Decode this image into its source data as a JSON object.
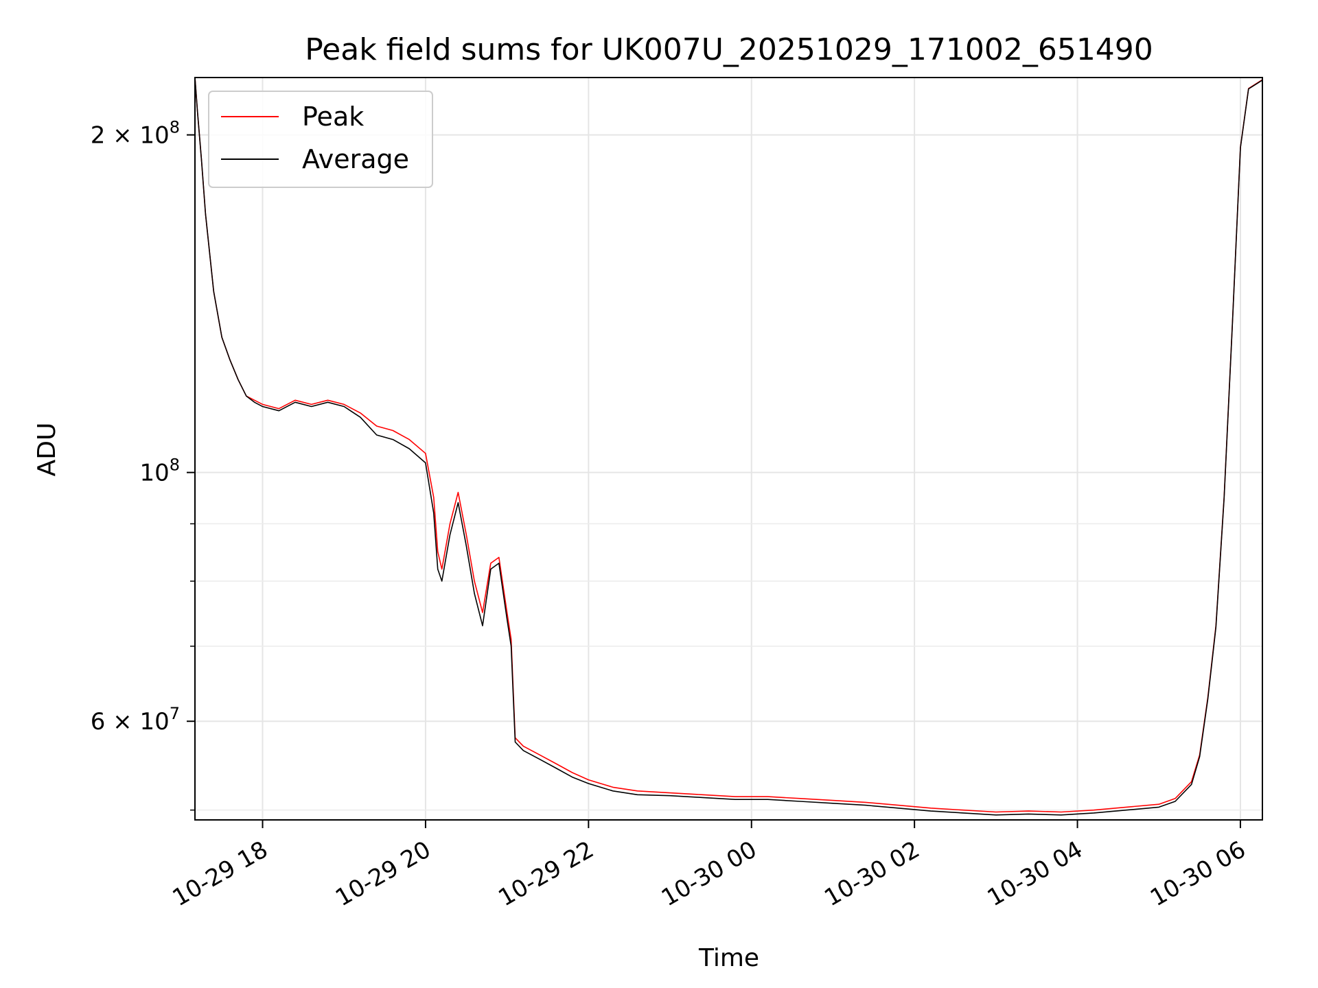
{
  "chart_data": {
    "type": "line",
    "title": "Peak field sums for UK007U_20251029_171002_651490",
    "xlabel": "Time",
    "ylabel": "ADU",
    "yscale": "log",
    "grid": true,
    "legend": {
      "placement": "upper-left",
      "entries": [
        "Peak",
        "Average"
      ]
    },
    "xlim_hours": [
      17.17,
      30.27
    ],
    "ylim": [
      49000000,
      225000000
    ],
    "x_ticks": [
      {
        "hour": 18,
        "label": "10-29 18"
      },
      {
        "hour": 20,
        "label": "10-29 20"
      },
      {
        "hour": 22,
        "label": "10-29 22"
      },
      {
        "hour": 24,
        "label": "10-30 00"
      },
      {
        "hour": 26,
        "label": "10-30 02"
      },
      {
        "hour": 28,
        "label": "10-30 04"
      },
      {
        "hour": 30,
        "label": "10-30 06"
      }
    ],
    "y_major_ticks": [
      {
        "value": 200000000,
        "base": "2 × 10",
        "exp": "8"
      },
      {
        "value": 100000000,
        "base": "10",
        "exp": "8"
      },
      {
        "value": 60000000,
        "base": "6 × 10",
        "exp": "7"
      }
    ],
    "y_minor_ticks": [
      50000000,
      70000000,
      80000000,
      90000000
    ],
    "series": [
      {
        "name": "Peak",
        "color": "#ff0000",
        "x_hours": [
          17.17,
          17.2,
          17.25,
          17.3,
          17.4,
          17.5,
          17.6,
          17.7,
          17.8,
          17.9,
          18.0,
          18.2,
          18.4,
          18.6,
          18.8,
          19.0,
          19.2,
          19.4,
          19.6,
          19.8,
          20.0,
          20.1,
          20.15,
          20.2,
          20.3,
          20.4,
          20.5,
          20.6,
          20.7,
          20.8,
          20.9,
          21.0,
          21.05,
          21.1,
          21.2,
          21.4,
          21.6,
          21.8,
          22.0,
          22.3,
          22.6,
          23.0,
          23.4,
          23.8,
          24.2,
          24.6,
          25.0,
          25.4,
          25.8,
          26.2,
          26.6,
          27.0,
          27.4,
          27.8,
          28.2,
          28.6,
          29.0,
          29.2,
          29.4,
          29.5,
          29.6,
          29.7,
          29.8,
          29.9,
          30.0,
          30.1,
          30.27
        ],
        "values": [
          225000000,
          210000000,
          190000000,
          170000000,
          145000000,
          132000000,
          126000000,
          121000000,
          117000000,
          116000000,
          115000000,
          114000000,
          116000000,
          115000000,
          116000000,
          115000000,
          113000000,
          110000000,
          109000000,
          107000000,
          104000000,
          95000000,
          85000000,
          82000000,
          90000000,
          96000000,
          88000000,
          80000000,
          75000000,
          83000000,
          84000000,
          75000000,
          71000000,
          58000000,
          57000000,
          56000000,
          55000000,
          54000000,
          53200000,
          52400000,
          52000000,
          51800000,
          51600000,
          51400000,
          51400000,
          51200000,
          51000000,
          50800000,
          50500000,
          50200000,
          50000000,
          49800000,
          49900000,
          49800000,
          50000000,
          50300000,
          50600000,
          51200000,
          53000000,
          56000000,
          63000000,
          73000000,
          95000000,
          135000000,
          195000000,
          220000000,
          224000000
        ]
      },
      {
        "name": "Average",
        "color": "#000000",
        "x_hours": [
          17.17,
          17.2,
          17.25,
          17.3,
          17.4,
          17.5,
          17.6,
          17.7,
          17.8,
          17.9,
          18.0,
          18.2,
          18.4,
          18.6,
          18.8,
          19.0,
          19.2,
          19.4,
          19.6,
          19.8,
          20.0,
          20.1,
          20.15,
          20.2,
          20.3,
          20.4,
          20.5,
          20.6,
          20.7,
          20.8,
          20.9,
          21.0,
          21.05,
          21.1,
          21.2,
          21.4,
          21.6,
          21.8,
          22.0,
          22.3,
          22.6,
          23.0,
          23.4,
          23.8,
          24.2,
          24.6,
          25.0,
          25.4,
          25.8,
          26.2,
          26.6,
          27.0,
          27.4,
          27.8,
          28.2,
          28.6,
          29.0,
          29.2,
          29.4,
          29.5,
          29.6,
          29.7,
          29.8,
          29.9,
          30.0,
          30.1,
          30.27
        ],
        "values": [
          225000000,
          210000000,
          190000000,
          170000000,
          145000000,
          132000000,
          126000000,
          121000000,
          117000000,
          115500000,
          114500000,
          113500000,
          115500000,
          114500000,
          115500000,
          114500000,
          112000000,
          108000000,
          107000000,
          105000000,
          102000000,
          92000000,
          82000000,
          80000000,
          88000000,
          94000000,
          86000000,
          78000000,
          73000000,
          82000000,
          83000000,
          74000000,
          70000000,
          57500000,
          56500000,
          55500000,
          54500000,
          53500000,
          52800000,
          52000000,
          51600000,
          51500000,
          51300000,
          51100000,
          51100000,
          50900000,
          50700000,
          50500000,
          50200000,
          49900000,
          49700000,
          49500000,
          49600000,
          49500000,
          49700000,
          50000000,
          50300000,
          50900000,
          52700000,
          55800000,
          62800000,
          72800000,
          94800000,
          134800000,
          194800000,
          219800000,
          223800000
        ]
      }
    ]
  }
}
